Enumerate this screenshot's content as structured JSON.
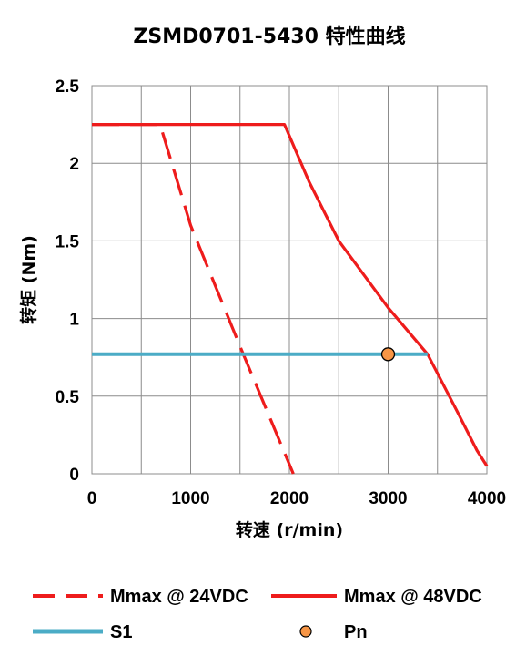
{
  "chart_data": {
    "type": "line",
    "title": "ZSMD0701-5430 特性曲线",
    "xlabel": "转速 (r/min)",
    "ylabel": "转矩 (Nm)",
    "xlim": [
      0,
      4000
    ],
    "ylim": [
      0,
      2.5
    ],
    "x_ticks": [
      "0",
      "1000",
      "2000",
      "3000",
      "4000"
    ],
    "y_ticks": [
      "0",
      "0.5",
      "1",
      "1.5",
      "2",
      "2.5"
    ],
    "grid": true,
    "legend_position": "bottom",
    "series": [
      {
        "name": "Mmax @ 24VDC",
        "style": "dashed",
        "color": "#ee1c1c",
        "points": [
          [
            0,
            2.25
          ],
          [
            690,
            2.25
          ],
          [
            1000,
            1.6
          ],
          [
            1500,
            0.82
          ],
          [
            2040,
            0
          ]
        ]
      },
      {
        "name": "Mmax @ 48VDC",
        "style": "solid",
        "color": "#ee1c1c",
        "points": [
          [
            0,
            2.25
          ],
          [
            1950,
            2.25
          ],
          [
            2200,
            1.88
          ],
          [
            2500,
            1.5
          ],
          [
            3000,
            1.07
          ],
          [
            3400,
            0.77
          ],
          [
            3700,
            0.4
          ],
          [
            3900,
            0.15
          ],
          [
            4000,
            0.05
          ]
        ]
      },
      {
        "name": "S1",
        "style": "solid",
        "color": "#4bacc6",
        "points": [
          [
            0,
            0.77
          ],
          [
            3400,
            0.77
          ]
        ]
      },
      {
        "name": "Pn",
        "style": "marker",
        "color": "#f79646",
        "points": [
          [
            3000,
            0.77
          ]
        ]
      }
    ]
  }
}
